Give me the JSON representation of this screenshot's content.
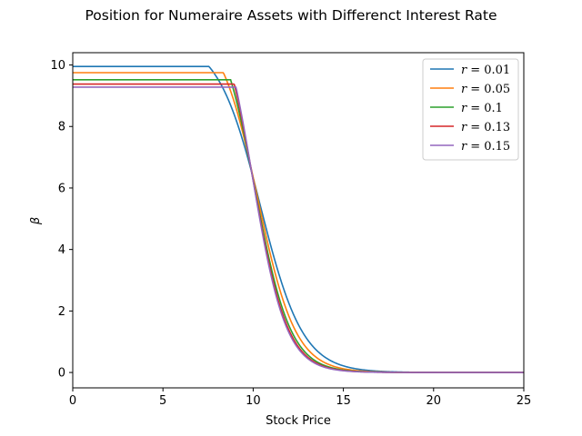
{
  "chart_data": {
    "type": "line",
    "title": "Position for Numeraire Assets with Differenct Interest Rate",
    "xlabel": "Stock Price",
    "ylabel": "β",
    "xlim": [
      0,
      25
    ],
    "ylim": [
      -0.5,
      10.4
    ],
    "xticks": [
      0,
      5,
      10,
      15,
      20,
      25
    ],
    "yticks": [
      0,
      2,
      4,
      6,
      8,
      10
    ],
    "grid": false,
    "legend_position": "top-right",
    "series": [
      {
        "name": "r = 0.01",
        "legend_var": "r",
        "legend_val": "= 0.01",
        "color": "#1f77b4",
        "plateau": 9.95,
        "knee_x": 7.55,
        "knee_y": 9.92,
        "center": 10.4,
        "width": 1.18
      },
      {
        "name": "r = 0.05",
        "legend_var": "r",
        "legend_val": "= 0.05",
        "color": "#ff7f0e",
        "plateau": 9.75,
        "knee_x": 8.35,
        "knee_y": 9.72,
        "center": 10.25,
        "width": 1.05
      },
      {
        "name": "r = 0.1",
        "legend_var": "r",
        "legend_val": "= 0.1",
        "color": "#2ca02c",
        "plateau": 9.52,
        "knee_x": 8.75,
        "knee_y": 9.48,
        "center": 10.1,
        "width": 0.98
      },
      {
        "name": "r = 0.13",
        "legend_var": "r",
        "legend_val": "= 0.13",
        "color": "#d62728",
        "plateau": 9.38,
        "knee_x": 8.95,
        "knee_y": 9.35,
        "center": 10.0,
        "width": 0.95
      },
      {
        "name": "r = 0.15",
        "legend_var": "r",
        "legend_val": "= 0.15",
        "color": "#9467bd",
        "plateau": 9.28,
        "knee_x": 9.05,
        "knee_y": 9.25,
        "center": 9.95,
        "width": 0.93
      }
    ]
  }
}
